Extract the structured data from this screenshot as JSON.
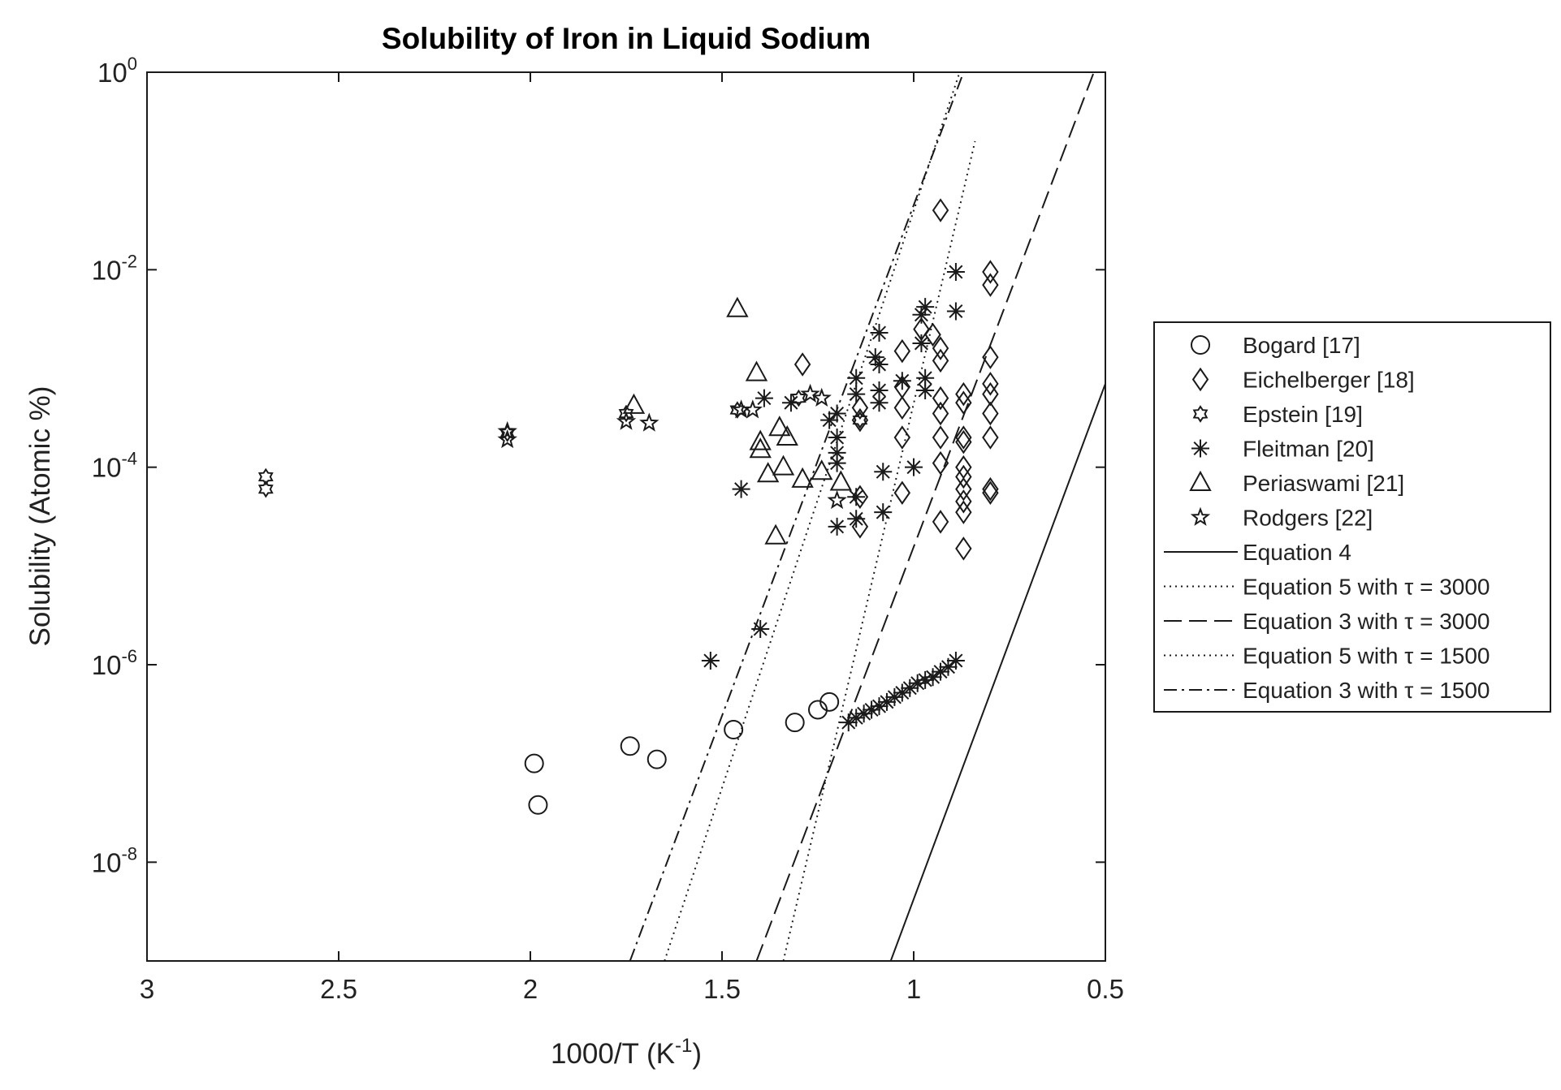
{
  "chart_data": {
    "type": "scatter",
    "title": "Solubility of Iron in Liquid Sodium",
    "xlabel": "1000/T (K",
    "xlabel_sup": "-1",
    "xlabel_close": ")",
    "ylabel": "Solubility (Atomic %)",
    "x_axis_reversed": true,
    "xlim": [
      0.5,
      3
    ],
    "ylim": [
      1e-09,
      1
    ],
    "y_scale": "log",
    "x_ticks": [
      3,
      2.5,
      2,
      1.5,
      1,
      0.5
    ],
    "x_tick_labels": [
      "3",
      "2.5",
      "2",
      "1.5",
      "1",
      "0.5"
    ],
    "y_ticks": [
      {
        "value": 1,
        "base": "10",
        "exp": "0"
      },
      {
        "value": 0.01,
        "base": "10",
        "exp": "-2"
      },
      {
        "value": 0.0001,
        "base": "10",
        "exp": "-4"
      },
      {
        "value": 1e-06,
        "base": "10",
        "exp": "-6"
      },
      {
        "value": 1e-08,
        "base": "10",
        "exp": "-8"
      }
    ],
    "grid": false,
    "legend_position": "outside-right",
    "series": [
      {
        "name": "Bogard [17]",
        "marker": "circle",
        "points": [
          [
            1.99,
            1e-07
          ],
          [
            1.98,
            3.8e-08
          ],
          [
            1.74,
            1.5e-07
          ],
          [
            1.67,
            1.1e-07
          ],
          [
            1.47,
            2.2e-07
          ],
          [
            1.31,
            2.6e-07
          ],
          [
            1.25,
            3.5e-07
          ],
          [
            1.22,
            4.2e-07
          ]
        ]
      },
      {
        "name": "Eichelberger [18]",
        "marker": "diamond",
        "points": [
          [
            0.93,
            0.04
          ],
          [
            0.8,
            0.0095
          ],
          [
            0.8,
            0.007
          ],
          [
            1.29,
            0.0011
          ],
          [
            0.98,
            0.0025
          ],
          [
            0.95,
            0.0022
          ],
          [
            1.03,
            0.0015
          ],
          [
            0.93,
            0.0016
          ],
          [
            0.93,
            0.0012
          ],
          [
            0.87,
            0.00055
          ],
          [
            0.87,
            0.00045
          ],
          [
            0.8,
            0.0013
          ],
          [
            0.8,
            0.0007
          ],
          [
            0.8,
            0.00055
          ],
          [
            0.8,
            0.00035
          ],
          [
            0.8,
            0.0002
          ],
          [
            0.87,
            0.0002
          ],
          [
            0.87,
            0.00018
          ],
          [
            1.14,
            0.0004
          ],
          [
            1.14,
            0.0003
          ],
          [
            1.03,
            0.00065
          ],
          [
            1.03,
            0.0004
          ],
          [
            1.03,
            0.0002
          ],
          [
            0.93,
            0.0005
          ],
          [
            0.93,
            0.00035
          ],
          [
            0.93,
            0.0002
          ],
          [
            0.93,
            0.00011
          ],
          [
            0.87,
            0.0001
          ],
          [
            0.87,
            8e-05
          ],
          [
            0.87,
            6e-05
          ],
          [
            0.87,
            4.5e-05
          ],
          [
            0.87,
            3.5e-05
          ],
          [
            0.8,
            5.5e-05
          ],
          [
            0.8,
            6e-05
          ],
          [
            1.03,
            5.5e-05
          ],
          [
            0.93,
            2.8e-05
          ],
          [
            0.87,
            1.5e-05
          ],
          [
            1.14,
            2.5e-05
          ],
          [
            1.14,
            5e-05
          ]
        ]
      },
      {
        "name": "Epstein [19]",
        "marker": "hexagram",
        "points": [
          [
            2.69,
            8e-05
          ],
          [
            2.69,
            6e-05
          ],
          [
            2.06,
            0.00022
          ],
          [
            1.75,
            0.00035
          ],
          [
            1.46,
            0.00038
          ],
          [
            1.3,
            0.0005
          ],
          [
            1.14,
            0.0003
          ]
        ]
      },
      {
        "name": "Fleitman [20]",
        "marker": "asterisk",
        "points": [
          [
            0.89,
            0.0095
          ],
          [
            0.89,
            0.0038
          ],
          [
            0.97,
            0.0042
          ],
          [
            0.98,
            0.0035
          ],
          [
            1.09,
            0.0023
          ],
          [
            1.1,
            0.0013
          ],
          [
            1.09,
            0.0011
          ],
          [
            1.09,
            0.0006
          ],
          [
            1.09,
            0.00045
          ],
          [
            1.03,
            0.00075
          ],
          [
            0.98,
            0.0018
          ],
          [
            0.97,
            0.0008
          ],
          [
            0.97,
            0.0006
          ],
          [
            1.15,
            0.0008
          ],
          [
            1.15,
            0.00055
          ],
          [
            1.2,
            0.00035
          ],
          [
            1.22,
            0.0003
          ],
          [
            1.2,
            0.0002
          ],
          [
            1.2,
            0.00014
          ],
          [
            1.2,
            0.00011
          ],
          [
            1.39,
            0.0005
          ],
          [
            1.32,
            0.00045
          ],
          [
            1.08,
            9e-05
          ],
          [
            1.0,
            0.0001
          ],
          [
            1.08,
            3.5e-05
          ],
          [
            1.15,
            5e-05
          ],
          [
            1.15,
            3e-05
          ],
          [
            1.2,
            2.5e-05
          ],
          [
            1.45,
            6e-05
          ],
          [
            1.4,
            2.3e-06
          ],
          [
            1.53,
            1.1e-06
          ],
          [
            0.89,
            1.1e-06
          ],
          [
            0.91,
            9.5e-07
          ],
          [
            0.93,
            8.5e-07
          ],
          [
            0.95,
            7.5e-07
          ],
          [
            0.97,
            7e-07
          ],
          [
            0.99,
            6.5e-07
          ],
          [
            1.01,
            5.8e-07
          ],
          [
            1.03,
            5.2e-07
          ],
          [
            1.05,
            4.7e-07
          ],
          [
            1.07,
            4.2e-07
          ],
          [
            1.09,
            3.8e-07
          ],
          [
            1.11,
            3.5e-07
          ],
          [
            1.13,
            3.2e-07
          ],
          [
            1.15,
            2.9e-07
          ],
          [
            1.17,
            2.6e-07
          ]
        ]
      },
      {
        "name": "Periaswami [21]",
        "marker": "triangle",
        "points": [
          [
            1.46,
            0.004
          ],
          [
            1.41,
            0.0009
          ],
          [
            1.73,
            0.00042
          ],
          [
            1.35,
            0.00025
          ],
          [
            1.33,
            0.0002
          ],
          [
            1.4,
            0.00018
          ],
          [
            1.4,
            0.00015
          ],
          [
            1.34,
            0.0001
          ],
          [
            1.38,
            8.5e-05
          ],
          [
            1.29,
            7.5e-05
          ],
          [
            1.24,
            9e-05
          ],
          [
            1.19,
            7e-05
          ],
          [
            1.36,
            2e-05
          ]
        ]
      },
      {
        "name": "Rodgers [22]",
        "marker": "star",
        "points": [
          [
            2.06,
            0.00023
          ],
          [
            2.06,
            0.00019
          ],
          [
            1.75,
            0.00029
          ],
          [
            1.69,
            0.00028
          ],
          [
            1.45,
            0.00038
          ],
          [
            1.42,
            0.00038
          ],
          [
            1.27,
            0.00055
          ],
          [
            1.24,
            0.0005
          ],
          [
            1.2,
            4.6e-05
          ]
        ]
      }
    ],
    "lines": [
      {
        "name": "Equation 4",
        "dash": "solid",
        "points": [
          [
            1.06,
            1e-09
          ],
          [
            0.5,
            0.0007
          ]
        ]
      },
      {
        "name": "Equation 5 with τ = 3000",
        "dash": "dotted",
        "points": [
          [
            1.34,
            1e-09
          ],
          [
            0.84,
            0.2
          ]
        ]
      },
      {
        "name": "Equation 3 with τ = 3000",
        "dash": "dashed",
        "points": [
          [
            1.41,
            1e-09
          ],
          [
            0.53,
            1.0
          ]
        ]
      },
      {
        "name": "Equation 5 with τ = 1500",
        "dash": "dotted",
        "points": [
          [
            1.65,
            1e-09
          ],
          [
            0.88,
            1.0
          ]
        ]
      },
      {
        "name": "Equation 3 with τ = 1500",
        "dash": "dashdot",
        "points": [
          [
            1.74,
            1e-09
          ],
          [
            0.87,
            1.0
          ]
        ]
      }
    ]
  }
}
